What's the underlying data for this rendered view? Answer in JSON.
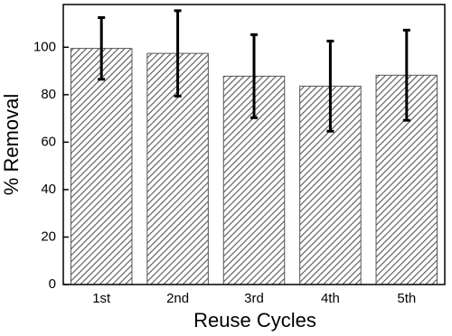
{
  "chart_data": {
    "type": "bar",
    "categories": [
      "1st",
      "2nd",
      "3rd",
      "4th",
      "5th"
    ],
    "values": [
      99.5,
      97.4,
      87.8,
      83.6,
      88.2
    ],
    "errors": [
      13,
      18,
      17.5,
      19,
      19
    ],
    "color": "#555555",
    "xlabel": "Reuse Cycles",
    "ylabel": "% Removal",
    "ylim": [
      0,
      118
    ],
    "yticks": [
      0,
      20,
      40,
      60,
      80,
      100
    ]
  }
}
